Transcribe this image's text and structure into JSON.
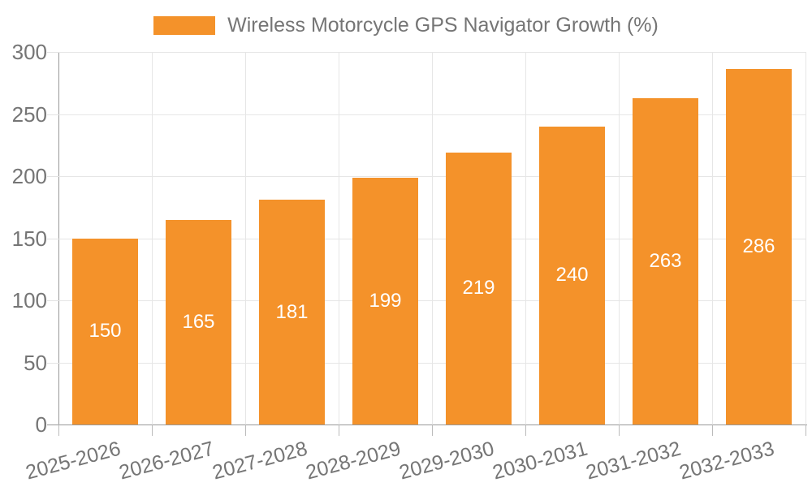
{
  "legend": {
    "label": "Wireless Motorcycle GPS Navigator Growth (%)"
  },
  "colors": {
    "bar": "#f4922a",
    "axis": "#999999",
    "grid": "#e6e6e6",
    "tick": "#bbbbbb",
    "text": "#757575",
    "value_label": "#ffffff",
    "background": "#ffffff"
  },
  "chart_data": {
    "type": "bar",
    "title": "Wireless Motorcycle GPS Navigator Growth (%)",
    "categories": [
      "2025-2026",
      "2026-2027",
      "2027-2028",
      "2028-2029",
      "2029-2030",
      "2030-2031",
      "2031-2032",
      "2032-2033"
    ],
    "values": [
      150,
      165,
      181,
      199,
      219,
      240,
      263,
      286
    ],
    "xlabel": "",
    "ylabel": "",
    "ylim": [
      0,
      300
    ],
    "yticks": [
      0,
      50,
      100,
      150,
      200,
      250,
      300
    ],
    "grid": true,
    "legend_position": "top-center",
    "value_label_position": "inside-center",
    "x_label_rotation_deg": -15
  }
}
